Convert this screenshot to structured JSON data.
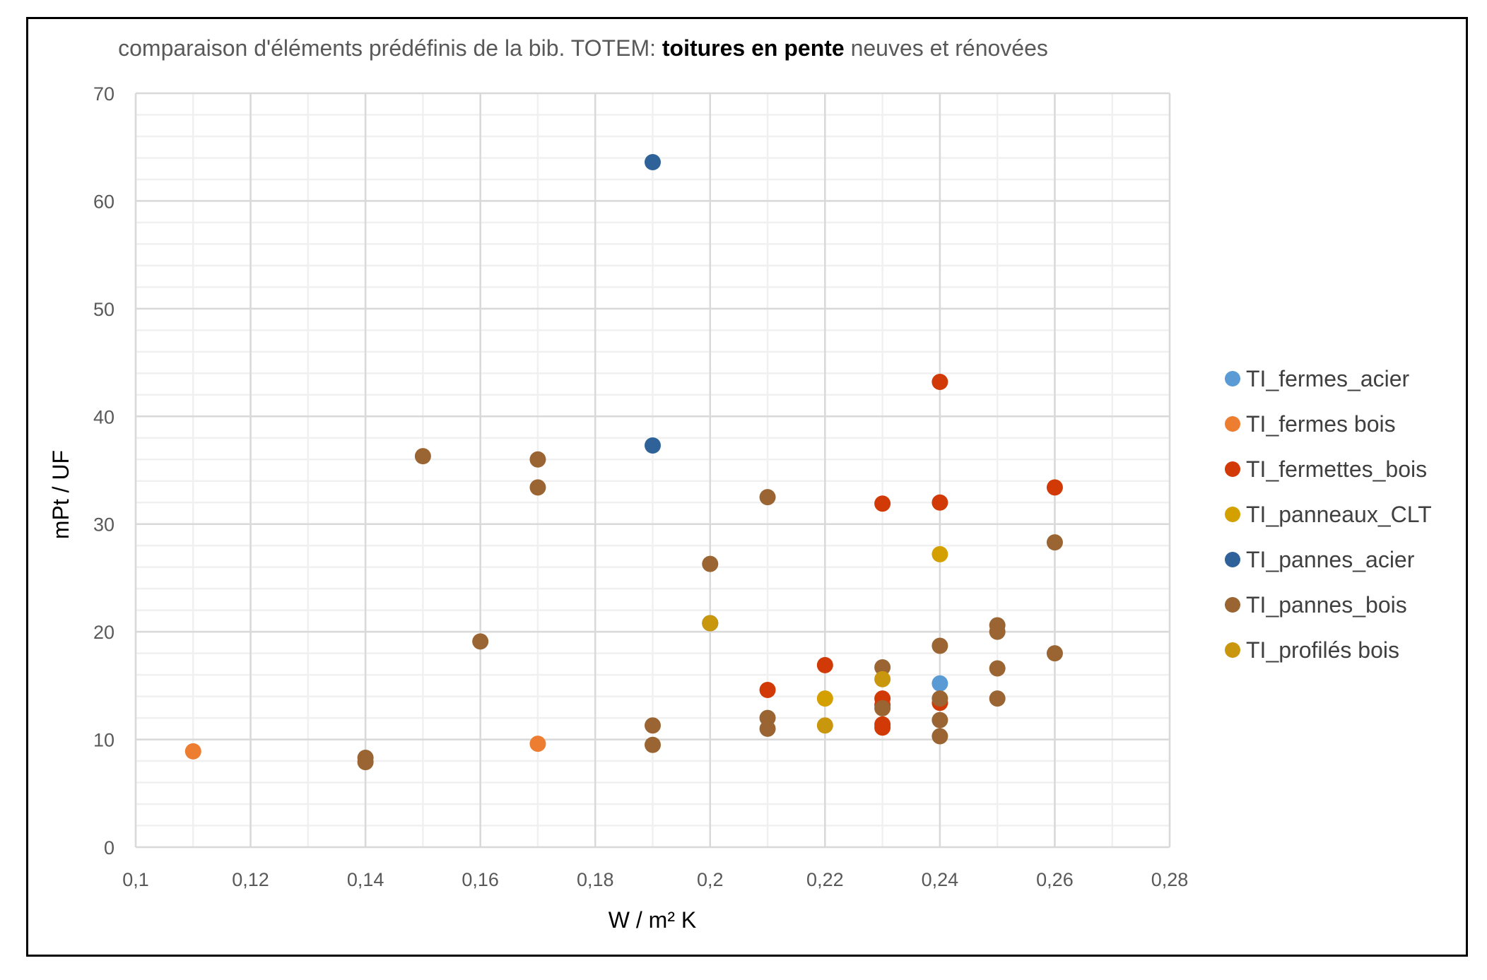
{
  "chart_data": {
    "type": "scatter",
    "title": {
      "prefix": "comparaison d'éléments prédéfinis de la bib. TOTEM: ",
      "bold": "toitures en pente",
      "suffix": " neuves et rénovées"
    },
    "xlabel": "W / m² K",
    "ylabel": "mPt / UF",
    "xlim": [
      0.1,
      0.28
    ],
    "ylim": [
      0,
      70
    ],
    "x_ticks": [
      0.1,
      0.12,
      0.14,
      0.16,
      0.18,
      0.2,
      0.22,
      0.24,
      0.26,
      0.28
    ],
    "x_tick_labels": [
      "0,1",
      "0,12",
      "0,14",
      "0,16",
      "0,18",
      "0,2",
      "0,22",
      "0,24",
      "0,26",
      "0,28"
    ],
    "y_ticks": [
      0,
      10,
      20,
      30,
      40,
      50,
      60,
      70
    ],
    "y_tick_labels": [
      "0",
      "10",
      "20",
      "30",
      "40",
      "50",
      "60",
      "70"
    ],
    "grid": true,
    "minor_grid": true,
    "legend_position": "right",
    "series": [
      {
        "name": "TI_fermes_acier",
        "color": "#5b9bd5",
        "points": [
          [
            0.24,
            15.2
          ]
        ]
      },
      {
        "name": "TI_fermes bois",
        "color": "#ed7d31",
        "points": [
          [
            0.11,
            8.9
          ],
          [
            0.17,
            9.6
          ]
        ]
      },
      {
        "name": "TI_fermettes_bois",
        "color": "#d13a06",
        "points": [
          [
            0.24,
            43.2
          ],
          [
            0.23,
            31.9
          ],
          [
            0.24,
            32.0
          ],
          [
            0.26,
            33.4
          ],
          [
            0.22,
            16.9
          ],
          [
            0.21,
            14.6
          ],
          [
            0.23,
            13.8
          ],
          [
            0.23,
            13.2
          ],
          [
            0.23,
            11.4
          ],
          [
            0.23,
            11.1
          ],
          [
            0.24,
            13.4
          ]
        ]
      },
      {
        "name": "TI_panneaux_CLT",
        "color": "#d4a000",
        "points": [
          [
            0.24,
            27.2
          ],
          [
            0.22,
            13.8
          ],
          [
            0.2,
            20.8
          ]
        ]
      },
      {
        "name": "TI_pannes_acier",
        "color": "#2e6299",
        "points": [
          [
            0.19,
            63.6
          ],
          [
            0.19,
            37.3
          ],
          [
            0.2,
            20.8
          ]
        ]
      },
      {
        "name": "TI_pannes_bois",
        "color": "#9a6532",
        "points": [
          [
            0.15,
            36.3
          ],
          [
            0.17,
            36.0
          ],
          [
            0.17,
            33.4
          ],
          [
            0.16,
            19.1
          ],
          [
            0.14,
            8.3
          ],
          [
            0.14,
            7.9
          ],
          [
            0.19,
            11.3
          ],
          [
            0.19,
            9.5
          ],
          [
            0.2,
            26.3
          ],
          [
            0.21,
            32.5
          ],
          [
            0.21,
            12.0
          ],
          [
            0.21,
            11.0
          ],
          [
            0.23,
            16.7
          ],
          [
            0.23,
            12.9
          ],
          [
            0.24,
            18.7
          ],
          [
            0.24,
            13.8
          ],
          [
            0.24,
            11.8
          ],
          [
            0.24,
            10.3
          ],
          [
            0.25,
            20.6
          ],
          [
            0.25,
            20.0
          ],
          [
            0.25,
            16.6
          ],
          [
            0.25,
            13.8
          ],
          [
            0.26,
            28.3
          ],
          [
            0.26,
            18.0
          ]
        ]
      },
      {
        "name": "TI_profilés bois",
        "color": "#c9970e",
        "points": [
          [
            0.2,
            20.8
          ],
          [
            0.22,
            11.3
          ],
          [
            0.23,
            15.6
          ]
        ]
      }
    ]
  }
}
